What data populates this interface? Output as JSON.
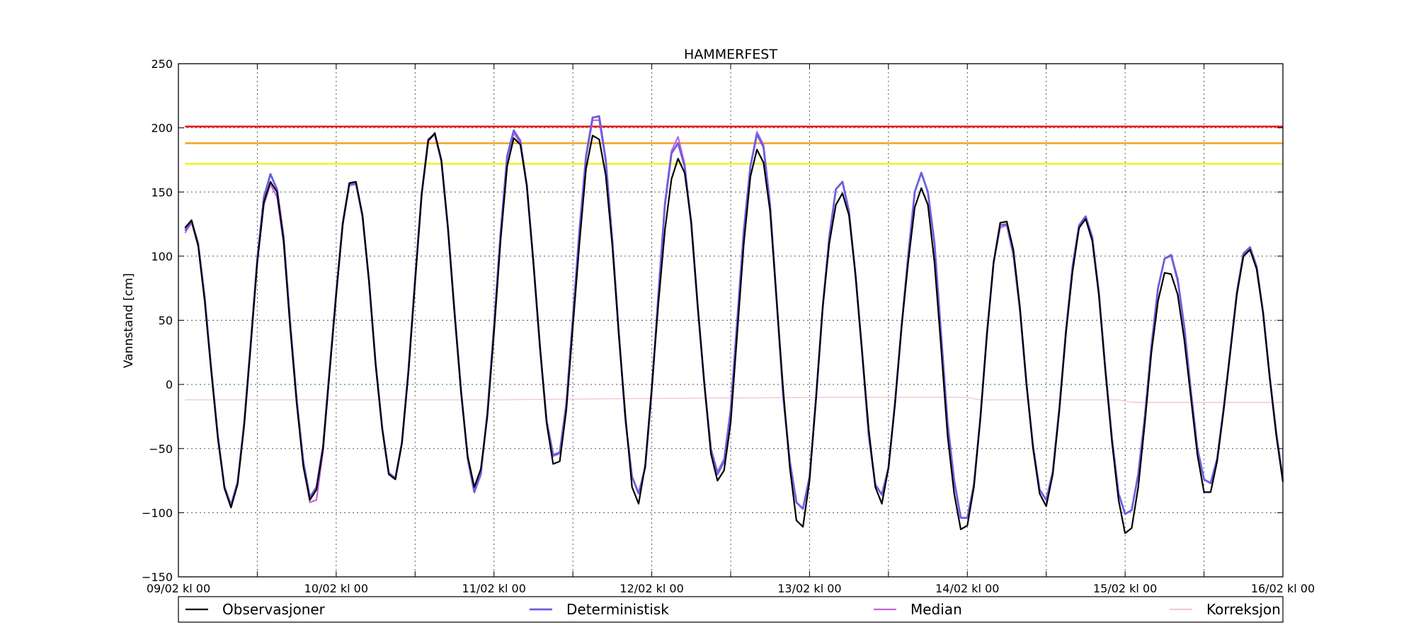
{
  "chart_data": {
    "type": "line",
    "title": "HAMMERFEST",
    "ylabel": "Vannstand [cm]",
    "xlabel": "",
    "ylim": [
      -150,
      250
    ],
    "yticks": [
      -150,
      -100,
      -50,
      0,
      50,
      100,
      150,
      200,
      250
    ],
    "ytick_labels": [
      "−150",
      "−100",
      "−50",
      "0",
      "50",
      "100",
      "150",
      "200",
      "250"
    ],
    "xlim": [
      0,
      168
    ],
    "xtick_labels": [
      {
        "x": 0,
        "label": "09/02 kl 00"
      },
      {
        "x": 24,
        "label": "10/02 kl 00"
      },
      {
        "x": 48,
        "label": "11/02 kl 00"
      },
      {
        "x": 72,
        "label": "12/02 kl 00"
      },
      {
        "x": 96,
        "label": "13/02 kl 00"
      },
      {
        "x": 120,
        "label": "14/02 kl 00"
      },
      {
        "x": 144,
        "label": "15/02 kl 00"
      },
      {
        "x": 168,
        "label": "16/02 kl 00"
      }
    ],
    "minor_ticks": [
      12,
      36,
      60,
      84,
      108,
      132,
      156
    ],
    "grid": true,
    "thresholds": [
      {
        "value": 201,
        "color": "#e8181c"
      },
      {
        "value": 188,
        "color": "#f5a020"
      },
      {
        "value": 172,
        "color": "#f2f21a"
      }
    ],
    "legend_placement": "bottom",
    "series": [
      {
        "name": "Observasjoner",
        "color": "#000000",
        "width": 2.2,
        "x": [
          1,
          2,
          3,
          4,
          5,
          6,
          7,
          8,
          9,
          10,
          11,
          12,
          13,
          14,
          15,
          16,
          17,
          18,
          19,
          20,
          21,
          22,
          23,
          24,
          25,
          26,
          27,
          28,
          29,
          30,
          31,
          32,
          33,
          34,
          35,
          36,
          37,
          38,
          39,
          40,
          41,
          42,
          43,
          44,
          45,
          46,
          47,
          48,
          49,
          50,
          51,
          52,
          53,
          54,
          55,
          56,
          57,
          58,
          59,
          60,
          61,
          62,
          63,
          64,
          65,
          66,
          67,
          68,
          69,
          70,
          71,
          72,
          73,
          74,
          75,
          76,
          77,
          78,
          79,
          80,
          81,
          82,
          83,
          84,
          85,
          86,
          87,
          88,
          89,
          90,
          91,
          92,
          93,
          94,
          95,
          96,
          97,
          98,
          99,
          100,
          101,
          102,
          103,
          104,
          105,
          106,
          107,
          108,
          109,
          110,
          111,
          112,
          113,
          114,
          115,
          116,
          117,
          118,
          119,
          120,
          121,
          122,
          123,
          124,
          125,
          126,
          127,
          128,
          129,
          130,
          131,
          132,
          133,
          134,
          135,
          136,
          137,
          138,
          139,
          140,
          141,
          142,
          143,
          144,
          145,
          146,
          147,
          148,
          149,
          150,
          151,
          152,
          153,
          154,
          155,
          156,
          157,
          158,
          159,
          160,
          161,
          162,
          163,
          164,
          165,
          166,
          167,
          168
        ],
        "y": [
          122,
          128,
          108,
          65,
          10,
          -42,
          -81,
          -96,
          -78,
          -32,
          30,
          95,
          142,
          158,
          150,
          112,
          44,
          -15,
          -64,
          -90,
          -82,
          -50,
          10,
          70,
          125,
          157,
          158,
          132,
          80,
          15,
          -35,
          -70,
          -74,
          -46,
          10,
          80,
          148,
          190,
          196,
          175,
          122,
          55,
          -7,
          -56,
          -80,
          -66,
          -25,
          40,
          112,
          170,
          192,
          187,
          155,
          95,
          30,
          -30,
          -62,
          -60,
          -20,
          45,
          110,
          168,
          194,
          191,
          163,
          108,
          38,
          -25,
          -80,
          -93,
          -63,
          -2,
          63,
          120,
          160,
          176,
          165,
          127,
          60,
          0,
          -54,
          -75,
          -67,
          -30,
          40,
          110,
          162,
          183,
          173,
          135,
          65,
          -5,
          -65,
          -106,
          -111,
          -75,
          -10,
          60,
          110,
          140,
          149,
          132,
          85,
          25,
          -35,
          -80,
          -93,
          -65,
          -15,
          45,
          95,
          138,
          153,
          140,
          95,
          30,
          -40,
          -85,
          -113,
          -110,
          -80,
          -25,
          40,
          95,
          126,
          127,
          105,
          60,
          0,
          -50,
          -85,
          -95,
          -70,
          -20,
          40,
          88,
          122,
          129,
          112,
          70,
          10,
          -45,
          -90,
          -116,
          -112,
          -80,
          -30,
          25,
          65,
          87,
          86,
          70,
          35,
          -10,
          -55,
          -84,
          -84,
          -60,
          -20,
          25,
          70,
          100,
          105,
          90,
          55,
          5,
          -40,
          -76
        ]
      },
      {
        "name": "Deterministisk",
        "color": "#6a5fdd",
        "width": 2.8,
        "x": [
          1,
          2,
          3,
          4,
          5,
          6,
          7,
          8,
          9,
          10,
          11,
          12,
          13,
          14,
          15,
          16,
          17,
          18,
          19,
          20,
          21,
          22,
          23,
          24,
          25,
          26,
          27,
          28,
          29,
          30,
          31,
          32,
          33,
          34,
          35,
          36,
          37,
          38,
          39,
          40,
          41,
          42,
          43,
          44,
          45,
          46,
          47,
          48,
          49,
          50,
          51,
          52,
          53,
          54,
          55,
          56,
          57,
          58,
          59,
          60,
          61,
          62,
          63,
          64,
          65,
          66,
          67,
          68,
          69,
          70,
          71,
          72,
          73,
          74,
          75,
          76,
          77,
          78,
          79,
          80,
          81,
          82,
          83,
          84,
          85,
          86,
          87,
          88,
          89,
          90,
          91,
          92,
          93,
          94,
          95,
          96,
          97,
          98,
          99,
          100,
          101,
          102,
          103,
          104,
          105,
          106,
          107,
          108,
          109,
          110,
          111,
          112,
          113,
          114,
          115,
          116,
          117,
          118,
          119,
          120,
          121,
          122,
          123,
          124,
          125,
          126,
          127,
          128,
          129,
          130,
          131,
          132,
          133,
          134,
          135,
          136,
          137,
          138,
          139,
          140,
          141,
          142,
          143,
          144,
          145,
          146,
          147,
          148,
          149,
          150,
          151,
          152,
          153,
          154,
          155,
          156,
          157,
          158,
          159,
          160,
          161,
          162,
          163,
          164,
          165,
          166,
          167,
          168
        ],
        "y": [
          120,
          127,
          110,
          68,
          12,
          -40,
          -80,
          -94,
          -76,
          -30,
          32,
          98,
          146,
          164,
          152,
          115,
          48,
          -12,
          -60,
          -88,
          -80,
          -48,
          12,
          72,
          126,
          156,
          157,
          131,
          80,
          16,
          -34,
          -69,
          -73,
          -45,
          12,
          82,
          149,
          191,
          195,
          174,
          122,
          57,
          -5,
          -58,
          -84,
          -70,
          -22,
          45,
          118,
          178,
          198,
          190,
          155,
          95,
          28,
          -28,
          -55,
          -53,
          -15,
          52,
          120,
          178,
          208,
          209,
          175,
          112,
          40,
          -28,
          -72,
          -85,
          -65,
          -5,
          70,
          140,
          180,
          188,
          170,
          125,
          60,
          0,
          -50,
          -70,
          -60,
          -20,
          50,
          120,
          170,
          195,
          185,
          140,
          65,
          -10,
          -60,
          -92,
          -97,
          -72,
          -10,
          60,
          115,
          152,
          158,
          135,
          85,
          25,
          -40,
          -78,
          -86,
          -65,
          -15,
          45,
          100,
          150,
          165,
          150,
          110,
          40,
          -30,
          -75,
          -104,
          -104,
          -78,
          -25,
          40,
          95,
          124,
          125,
          102,
          58,
          0,
          -48,
          -82,
          -90,
          -68,
          -18,
          42,
          92,
          124,
          131,
          115,
          72,
          12,
          -42,
          -85,
          -101,
          -98,
          -70,
          -25,
          30,
          75,
          98,
          101,
          82,
          45,
          -5,
          -50,
          -74,
          -77,
          -58,
          -18,
          26,
          72,
          102,
          107,
          92,
          56,
          6,
          -38,
          -74
        ]
      },
      {
        "name": "Median",
        "color": "#c464e0",
        "width": 2.2,
        "x": [
          1,
          2,
          3,
          4,
          5,
          6,
          7,
          8,
          9,
          10,
          11,
          12,
          13,
          14,
          15,
          16,
          17,
          18,
          19,
          20,
          21,
          22,
          23,
          24,
          25,
          26,
          27,
          28,
          29,
          30,
          31,
          32,
          33,
          34,
          35,
          36,
          37,
          38,
          39,
          40,
          41,
          42,
          43,
          44,
          45,
          46,
          47,
          48,
          49,
          50,
          51,
          52,
          53,
          54,
          55,
          56,
          57,
          58,
          59,
          60,
          61,
          62,
          63,
          64,
          65,
          66,
          67,
          68,
          69,
          70,
          71,
          72,
          73,
          74,
          75,
          76,
          77,
          78,
          79,
          80,
          81,
          82,
          83,
          84,
          85,
          86,
          87,
          88,
          89,
          90,
          91,
          92,
          93,
          94,
          95,
          96,
          97,
          98,
          99,
          100,
          101,
          102,
          103,
          104,
          105,
          106,
          107,
          108,
          109,
          110,
          111,
          112,
          113,
          114,
          115,
          116,
          117,
          118,
          119,
          120,
          121,
          122,
          123,
          124,
          125,
          126,
          127,
          128,
          129,
          130,
          131,
          132,
          133,
          134,
          135,
          136,
          137,
          138,
          139,
          140,
          141,
          142,
          143,
          144,
          145,
          146,
          147,
          148,
          149,
          150,
          151,
          152,
          153,
          154,
          155,
          156,
          157,
          158,
          159,
          160,
          161,
          162,
          163,
          164,
          165,
          166,
          167,
          168
        ],
        "y": [
          118,
          126,
          108,
          67,
          12,
          -40,
          -79,
          -94,
          -76,
          -30,
          30,
          95,
          140,
          156,
          146,
          110,
          45,
          -14,
          -62,
          -92,
          -90,
          -52,
          10,
          70,
          124,
          155,
          156,
          130,
          79,
          15,
          -35,
          -70,
          -74,
          -46,
          11,
          80,
          148,
          190,
          195,
          174,
          121,
          56,
          -6,
          -57,
          -82,
          -68,
          -23,
          44,
          116,
          176,
          196,
          188,
          154,
          94,
          28,
          -29,
          -56,
          -54,
          -16,
          50,
          118,
          176,
          206,
          206,
          173,
          110,
          38,
          -28,
          -72,
          -85,
          -65,
          -5,
          70,
          142,
          182,
          193,
          172,
          126,
          60,
          0,
          -50,
          -68,
          -58,
          -20,
          50,
          120,
          170,
          197,
          187,
          140,
          65,
          -10,
          -60,
          -92,
          -97,
          -72,
          -10,
          60,
          115,
          152,
          158,
          135,
          85,
          25,
          -40,
          -78,
          -86,
          -65,
          -15,
          45,
          100,
          150,
          165,
          150,
          110,
          40,
          -30,
          -75,
          -104,
          -104,
          -78,
          -25,
          40,
          95,
          122,
          124,
          100,
          57,
          0,
          -48,
          -82,
          -90,
          -68,
          -18,
          42,
          92,
          122,
          130,
          114,
          72,
          12,
          -42,
          -85,
          -101,
          -98,
          -70,
          -25,
          30,
          75,
          98,
          100,
          80,
          44,
          -5,
          -50,
          -74,
          -77,
          -58,
          -18,
          26,
          72,
          100,
          105,
          90,
          55,
          6,
          -38,
          -74
        ]
      },
      {
        "name": "Korreksjon",
        "color": "#f2c6d8",
        "width": 1.4,
        "x": [
          1,
          48,
          70,
          100,
          120,
          122,
          130,
          143,
          145,
          160,
          168
        ],
        "y": [
          -12,
          -12,
          -11,
          -10,
          -10,
          -12,
          -12,
          -12,
          -14,
          -14,
          -14
        ]
      }
    ]
  }
}
